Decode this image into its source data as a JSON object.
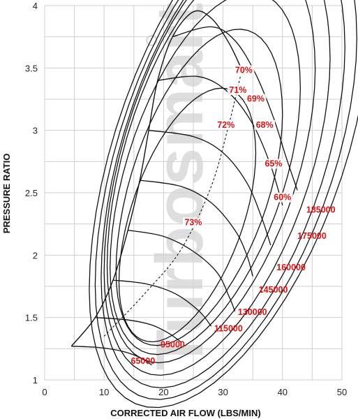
{
  "chart_data": {
    "type": "line",
    "title": "",
    "xlabel": "CORRECTED AIR FLOW (LBS/MIN)",
    "ylabel": "PRESSURE RATIO",
    "xlim": [
      0,
      50
    ],
    "ylim": [
      1,
      4
    ],
    "xticks": [
      "0",
      "10",
      "20",
      "30",
      "40",
      "50"
    ],
    "yticks": [
      "1",
      "1.5",
      "2",
      "2.5",
      "3",
      "3.5",
      "4"
    ],
    "grid": true,
    "watermark": "Turbosmart",
    "surge_line": [
      [
        4.5,
        1.27
      ],
      [
        8.5,
        1.5
      ],
      [
        11.5,
        1.8
      ],
      [
        14,
        2.2
      ],
      [
        16,
        2.6
      ],
      [
        17.5,
        3.0
      ],
      [
        19,
        3.4
      ],
      [
        21.5,
        3.75
      ],
      [
        25,
        3.95
      ],
      [
        28,
        3.9
      ],
      [
        31,
        3.7
      ],
      [
        33.5,
        3.45
      ]
    ],
    "speed_lines": [
      {
        "name": "65000",
        "points": [
          [
            4.5,
            1.27
          ],
          [
            9,
            1.26
          ],
          [
            13,
            1.23
          ],
          [
            16,
            1.18
          ],
          [
            18,
            1.12
          ]
        ]
      },
      {
        "name": "95000",
        "points": [
          [
            8.5,
            1.5
          ],
          [
            14,
            1.48
          ],
          [
            18,
            1.44
          ],
          [
            21,
            1.37
          ],
          [
            23,
            1.3
          ]
        ]
      },
      {
        "name": "115000",
        "points": [
          [
            11.5,
            1.8
          ],
          [
            17,
            1.77
          ],
          [
            22,
            1.69
          ],
          [
            26,
            1.55
          ],
          [
            28,
            1.43
          ]
        ]
      },
      {
        "name": "130000",
        "points": [
          [
            14,
            2.2
          ],
          [
            20,
            2.15
          ],
          [
            25,
            2.03
          ],
          [
            29,
            1.86
          ],
          [
            31,
            1.67
          ],
          [
            32,
            1.55
          ]
        ]
      },
      {
        "name": "145000",
        "points": [
          [
            16,
            2.6
          ],
          [
            23,
            2.55
          ],
          [
            28,
            2.42
          ],
          [
            32,
            2.2
          ],
          [
            34,
            2.0
          ],
          [
            35,
            1.83
          ]
        ]
      },
      {
        "name": "160000",
        "points": [
          [
            17.5,
            3.0
          ],
          [
            25,
            2.95
          ],
          [
            30,
            2.82
          ],
          [
            34,
            2.58
          ],
          [
            36.5,
            2.3
          ],
          [
            38,
            2.08
          ]
        ]
      },
      {
        "name": "175000",
        "points": [
          [
            19,
            3.4
          ],
          [
            26,
            3.43
          ],
          [
            31,
            3.3
          ],
          [
            35,
            3.05
          ],
          [
            38,
            2.72
          ],
          [
            40,
            2.4
          ]
        ]
      },
      {
        "name": "185000",
        "points": [
          [
            21.5,
            3.75
          ],
          [
            28,
            3.83
          ],
          [
            32,
            3.72
          ],
          [
            35.5,
            3.45
          ],
          [
            38.5,
            3.1
          ],
          [
            40.5,
            2.8
          ],
          [
            42.5,
            2.52
          ]
        ]
      }
    ],
    "efficiency_islands": [
      {
        "name": "73%",
        "center": [
          24,
          2.3
        ],
        "rx": 11.5,
        "ry_top": 0.9,
        "ry_bottom": 0.85
      },
      {
        "name": "72%",
        "center": [
          26,
          2.5
        ],
        "rx": 14,
        "ry_top": 1.15,
        "ry_bottom": 1.05
      },
      {
        "name": "71%",
        "center": [
          27,
          2.62
        ],
        "rx": 16,
        "ry_top": 1.3,
        "ry_bottom": 1.22
      },
      {
        "name": "70%",
        "center": [
          28,
          2.7
        ],
        "rx": 17.5,
        "ry_top": 1.5,
        "ry_bottom": 1.35
      },
      {
        "name": "69%",
        "center": [
          29,
          2.72
        ],
        "rx": 19,
        "ry_top": 1.62,
        "ry_bottom": 1.45
      },
      {
        "name": "68%",
        "center": [
          30,
          2.74
        ],
        "rx": 20.5,
        "ry_top": 1.7,
        "ry_bottom": 1.55
      },
      {
        "name": "65%",
        "center": [
          30.5,
          2.75
        ],
        "rx": 22,
        "ry_top": 1.78,
        "ry_bottom": 1.63
      },
      {
        "name": "60%",
        "center": [
          31,
          2.78
        ],
        "rx": 23.5,
        "ry_top": 1.85,
        "ry_bottom": 1.7
      }
    ],
    "optimal_line": [
      [
        10,
        1.35
      ],
      [
        17,
        1.7
      ],
      [
        23,
        2.05
      ],
      [
        28,
        2.55
      ],
      [
        31,
        3.05
      ],
      [
        33,
        3.45
      ]
    ],
    "efficiency_labels": [
      {
        "text": "70%",
        "x": 33.5,
        "y": 3.46
      },
      {
        "text": "71%",
        "x": 32.5,
        "y": 3.3
      },
      {
        "text": "69%",
        "x": 35.5,
        "y": 3.23
      },
      {
        "text": "72%",
        "x": 30.5,
        "y": 3.02
      },
      {
        "text": "68%",
        "x": 37,
        "y": 3.02
      },
      {
        "text": "65%",
        "x": 38.5,
        "y": 2.71
      },
      {
        "text": "60%",
        "x": 40,
        "y": 2.44
      },
      {
        "text": "73%",
        "x": 25,
        "y": 2.24
      }
    ],
    "speed_labels": [
      {
        "text": "65000",
        "x": 14.5,
        "y": 1.13
      },
      {
        "text": "95000",
        "x": 19.5,
        "y": 1.26
      },
      {
        "text": "115000",
        "x": 28.5,
        "y": 1.39
      },
      {
        "text": "130000",
        "x": 32.5,
        "y": 1.52
      },
      {
        "text": "145000",
        "x": 36,
        "y": 1.7
      },
      {
        "text": "160000",
        "x": 39,
        "y": 1.88
      },
      {
        "text": "175000",
        "x": 42.5,
        "y": 2.13
      },
      {
        "text": "185000",
        "x": 44,
        "y": 2.34
      }
    ]
  }
}
